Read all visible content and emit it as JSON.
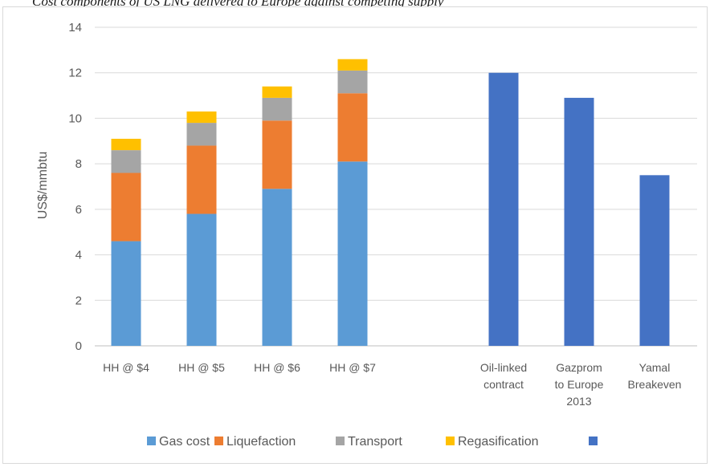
{
  "caption": "Cost components of US LNG delivered to Europe against competing supply",
  "chart_data": {
    "type": "bar",
    "stacked": true,
    "title": "",
    "xlabel": "",
    "ylabel": "US$/mmbtu",
    "ylim": [
      0,
      14
    ],
    "yticks": [
      0,
      2,
      4,
      6,
      8,
      10,
      12,
      14
    ],
    "grid": true,
    "legend_position": "bottom",
    "categories": [
      "HH @ $4",
      "HH @ $5",
      "HH @ $6",
      "HH @ $7",
      "",
      "Oil-linked contract",
      "Gazprom to Europe 2013",
      "Yamal Breakeven"
    ],
    "category_lines": [
      [
        "HH @ $4"
      ],
      [
        "HH @ $5"
      ],
      [
        "HH @ $6"
      ],
      [
        "HH @ $7"
      ],
      [],
      [
        "Oil-linked",
        "contract"
      ],
      [
        "Gazprom",
        "to Europe",
        "2013"
      ],
      [
        "Yamal",
        "Breakeven"
      ]
    ],
    "series": [
      {
        "name": "Gas cost",
        "color": "#5b9bd5",
        "values": [
          4.6,
          5.8,
          6.9,
          8.1,
          null,
          null,
          null,
          null
        ]
      },
      {
        "name": "Liquefaction",
        "color": "#ed7d31",
        "values": [
          3.0,
          3.0,
          3.0,
          3.0,
          null,
          null,
          null,
          null
        ]
      },
      {
        "name": "Transport",
        "color": "#a5a5a5",
        "values": [
          1.0,
          1.0,
          1.0,
          1.0,
          null,
          null,
          null,
          null
        ]
      },
      {
        "name": "Regasification",
        "color": "#ffc000",
        "values": [
          0.5,
          0.5,
          0.5,
          0.5,
          null,
          null,
          null,
          null
        ]
      },
      {
        "name": "",
        "color": "#4472c4",
        "values": [
          null,
          null,
          null,
          null,
          null,
          12.0,
          10.9,
          7.5
        ]
      }
    ]
  }
}
